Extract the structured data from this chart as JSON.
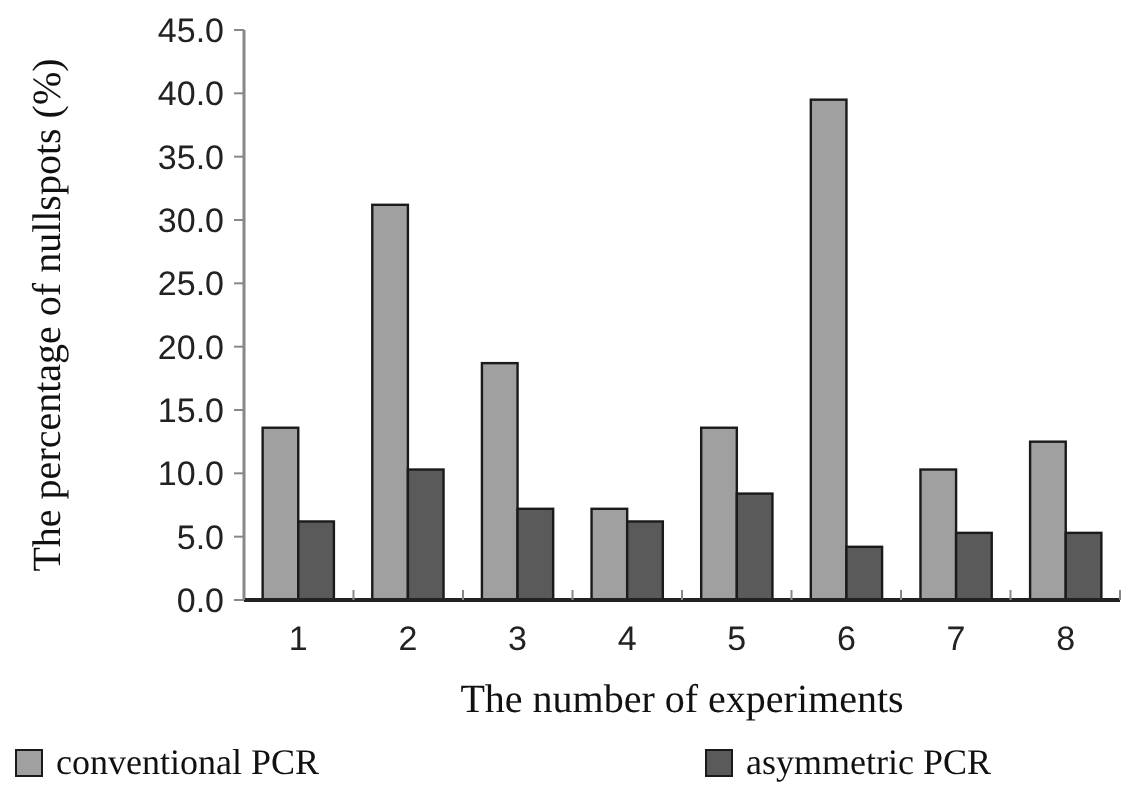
{
  "chart_data": {
    "type": "bar",
    "xlabel": "The number of experiments",
    "ylabel": "The percentage of nullspots (%)",
    "categories": [
      "1",
      "2",
      "3",
      "4",
      "5",
      "6",
      "7",
      "8"
    ],
    "series": [
      {
        "name": "conventional PCR",
        "color": "#a0a0a0",
        "values": [
          13.6,
          31.2,
          18.7,
          7.2,
          13.6,
          39.5,
          10.3,
          12.5
        ]
      },
      {
        "name": "asymmetric PCR",
        "color": "#5a5a5a",
        "values": [
          6.2,
          10.3,
          7.2,
          6.2,
          8.4,
          4.2,
          5.3,
          5.3
        ]
      }
    ],
    "ylim": [
      0,
      45
    ],
    "yticks": [
      {
        "value": 0,
        "label": "0.0"
      },
      {
        "value": 5,
        "label": "5.0"
      },
      {
        "value": 10,
        "label": "10.0"
      },
      {
        "value": 15,
        "label": "15.0"
      },
      {
        "value": 20,
        "label": "20.0"
      },
      {
        "value": 25,
        "label": "25.0"
      },
      {
        "value": 30,
        "label": "30.0"
      },
      {
        "value": 35,
        "label": "35.0"
      },
      {
        "value": 40,
        "label": "40.0"
      },
      {
        "value": 45,
        "label": "45.0"
      }
    ],
    "grid": false,
    "legend": "bottom"
  }
}
